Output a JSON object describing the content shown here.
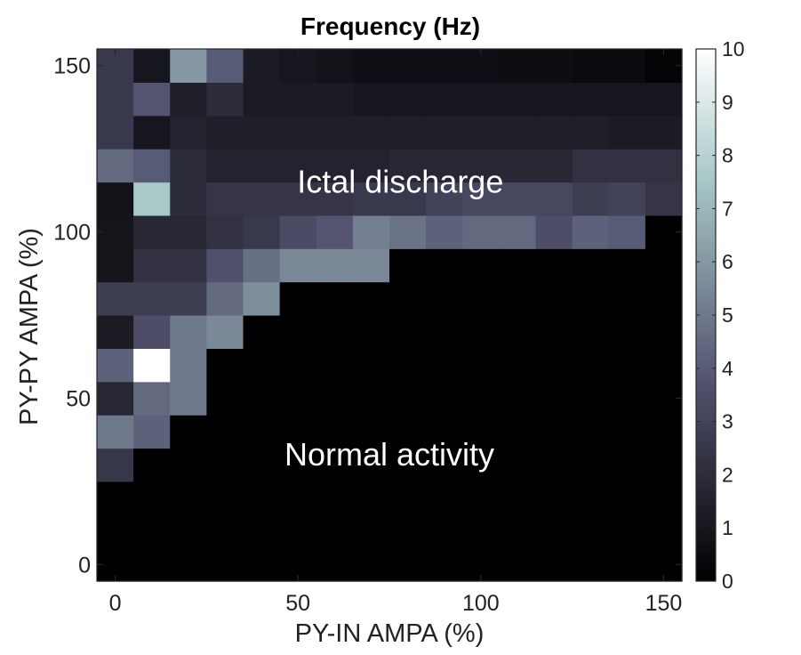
{
  "chart_data": {
    "type": "heatmap",
    "title": "Frequency (Hz)",
    "xlabel": "PY-IN AMPA (%)",
    "ylabel": "PY-PY AMPA (%)",
    "x": [
      0,
      10,
      20,
      30,
      40,
      50,
      60,
      70,
      80,
      90,
      100,
      110,
      120,
      130,
      140,
      150
    ],
    "y": [
      0,
      10,
      20,
      30,
      40,
      50,
      60,
      70,
      80,
      90,
      100,
      110,
      120,
      130,
      140,
      150
    ],
    "xlim": [
      -5,
      155
    ],
    "ylim": [
      -5,
      155
    ],
    "xticks": [
      0,
      50,
      100,
      150
    ],
    "yticks": [
      0,
      50,
      100,
      150
    ],
    "clim": [
      0,
      10
    ],
    "colorbar_ticks": [
      0,
      1,
      2,
      3,
      4,
      5,
      6,
      7,
      8,
      9,
      10
    ],
    "colormap": "bone",
    "z": [
      [
        0,
        0,
        0,
        0,
        0,
        0,
        0,
        0,
        0,
        0,
        0,
        0,
        0,
        0,
        0,
        0
      ],
      [
        0,
        0,
        0,
        0,
        0,
        0,
        0,
        0,
        0,
        0,
        0,
        0,
        0,
        0,
        0,
        0
      ],
      [
        0,
        0,
        0,
        0,
        0,
        0,
        0,
        0,
        0,
        0,
        0,
        0,
        0,
        0,
        0,
        0
      ],
      [
        2.5,
        0,
        0,
        0,
        0,
        0,
        0,
        0,
        0,
        0,
        0,
        0,
        0,
        0,
        0,
        0
      ],
      [
        5.0,
        4.2,
        0,
        0,
        0,
        0,
        0,
        0,
        0,
        0,
        0,
        0,
        0,
        0,
        0,
        0
      ],
      [
        1.8,
        4.5,
        5.0,
        0,
        0,
        0,
        0,
        0,
        0,
        0,
        0,
        0,
        0,
        0,
        0,
        0
      ],
      [
        4.2,
        10,
        5.0,
        0,
        0,
        0,
        0,
        0,
        0,
        0,
        0,
        0,
        0,
        0,
        0,
        0
      ],
      [
        1.2,
        3.5,
        5.0,
        5.5,
        0,
        0,
        0,
        0,
        0,
        0,
        0,
        0,
        0,
        0,
        0,
        0
      ],
      [
        2.8,
        2.8,
        2.8,
        4.5,
        5.7,
        0,
        0,
        0,
        0,
        0,
        0,
        0,
        0,
        0,
        0,
        0
      ],
      [
        0.9,
        2.2,
        2.2,
        3.6,
        4.7,
        5.5,
        5.5,
        5.5,
        0,
        0,
        0,
        0,
        0,
        0,
        0,
        0
      ],
      [
        0.9,
        1.8,
        1.8,
        2.2,
        2.6,
        3.4,
        3.8,
        5.2,
        4.8,
        4.2,
        4.5,
        4.5,
        3.5,
        4.2,
        4.0,
        0
      ],
      [
        0.8,
        7.6,
        2.0,
        2.4,
        2.4,
        2.4,
        2.4,
        2.6,
        2.6,
        3.0,
        3.2,
        3.2,
        3.2,
        2.8,
        3.0,
        2.4
      ],
      [
        4.5,
        4.0,
        2.0,
        1.6,
        1.6,
        1.6,
        1.6,
        1.6,
        1.8,
        1.8,
        1.8,
        1.8,
        1.8,
        2.2,
        2.2,
        2.2
      ],
      [
        2.6,
        1.0,
        1.6,
        1.4,
        1.4,
        1.4,
        1.4,
        1.4,
        1.4,
        1.4,
        1.4,
        1.4,
        1.4,
        1.4,
        1.2,
        1.2
      ],
      [
        2.6,
        3.8,
        1.4,
        2.0,
        1.2,
        1.2,
        1.2,
        1.0,
        1.0,
        1.0,
        1.0,
        1.0,
        1.0,
        1.0,
        1.0,
        1.0
      ],
      [
        2.6,
        1.0,
        6.0,
        4.0,
        1.2,
        1.0,
        0.8,
        0.7,
        0.7,
        0.7,
        0.7,
        0.6,
        0.6,
        0.5,
        0.5,
        0.2
      ]
    ],
    "annotations": [
      {
        "text": "Ictal discharge",
        "x": 78,
        "y": 115
      },
      {
        "text": "Normal activity",
        "x": 75,
        "y": 33
      }
    ]
  }
}
